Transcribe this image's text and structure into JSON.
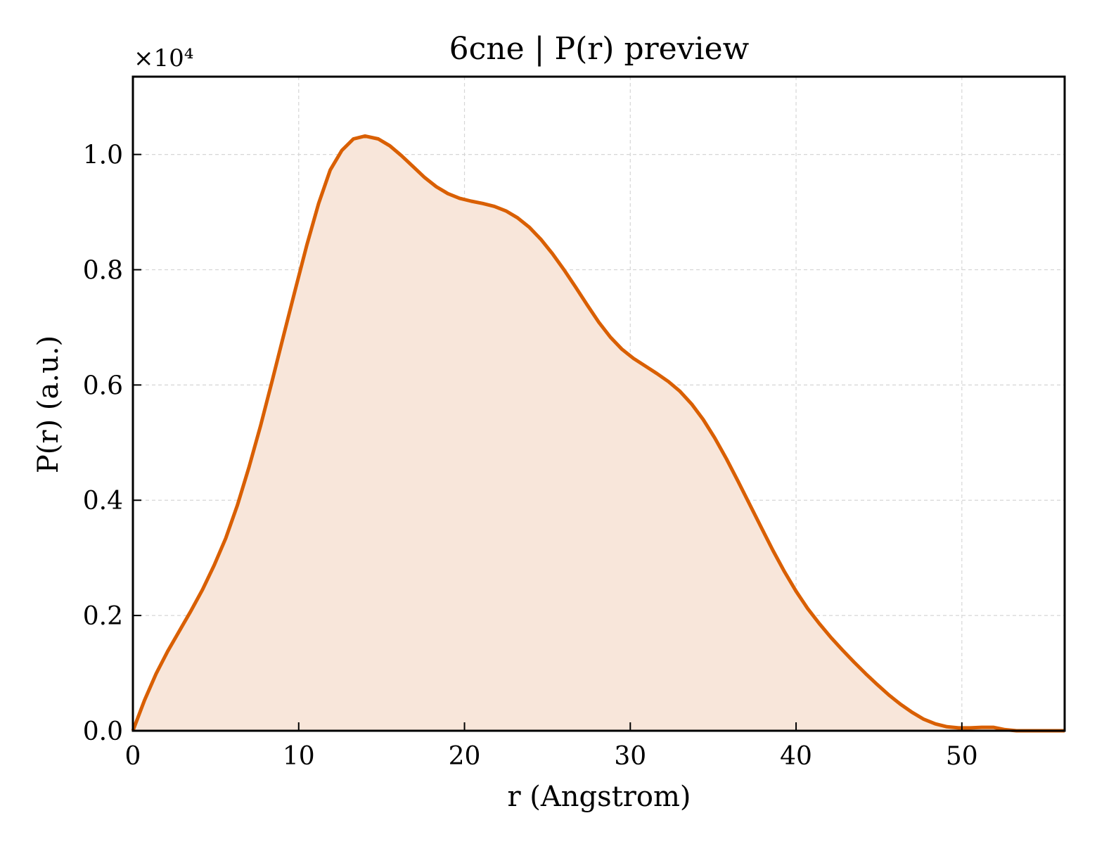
{
  "chart_data": {
    "type": "area",
    "title": "6cne | P(r) preview",
    "xlabel": "r (Angstrom)",
    "ylabel": "P(r) (a.u.)",
    "y_scale_factor_label": "×10⁴",
    "xlim": [
      0,
      56.2
    ],
    "ylim": [
      0,
      11350
    ],
    "xticks": [
      0,
      10,
      20,
      30,
      40,
      50
    ],
    "xtick_labels": [
      "0",
      "10",
      "20",
      "30",
      "40",
      "50"
    ],
    "yticks": [
      0,
      2000,
      4000,
      6000,
      8000,
      10000
    ],
    "ytick_labels": [
      "0.0",
      "0.2",
      "0.4",
      "0.6",
      "0.8",
      "1.0"
    ],
    "grid": true,
    "line_color": "#d95f02",
    "fill_color": "#f8e6da",
    "series": [
      {
        "x": [
          0,
          0.7,
          1.4,
          2.1,
          2.8,
          3.5,
          4.2,
          4.9,
          5.6,
          6.3,
          7.0,
          7.7,
          8.4,
          9.1,
          9.8,
          10.5,
          11.2,
          11.9,
          12.6,
          13.3,
          14.0,
          14.8,
          15.5,
          16.2,
          16.9,
          17.6,
          18.3,
          19.0,
          19.7,
          20.4,
          21.1,
          21.8,
          22.5,
          23.2,
          23.9,
          24.6,
          25.3,
          26.0,
          26.7,
          27.4,
          28.1,
          28.8,
          29.5,
          30.2,
          30.9,
          31.6,
          32.3,
          33.0,
          33.7,
          34.4,
          35.1,
          35.8,
          36.5,
          37.2,
          37.9,
          38.6,
          39.3,
          40.0,
          40.7,
          41.4,
          42.1,
          42.8,
          43.5,
          44.2,
          44.9,
          45.6,
          46.3,
          47.0,
          47.7,
          48.4,
          49.1,
          49.8,
          50.5,
          51.2,
          51.9,
          52.6,
          53.3,
          54.0,
          54.7,
          55.4,
          56.2
        ],
        "values": [
          0,
          530,
          990,
          1380,
          1730,
          2080,
          2450,
          2870,
          3340,
          3910,
          4570,
          5290,
          6070,
          6870,
          7660,
          8440,
          9150,
          9730,
          10070,
          10270,
          10320,
          10270,
          10150,
          9980,
          9790,
          9600,
          9440,
          9320,
          9240,
          9190,
          9150,
          9100,
          9020,
          8900,
          8740,
          8530,
          8280,
          8000,
          7700,
          7390,
          7090,
          6830,
          6620,
          6460,
          6330,
          6200,
          6060,
          5890,
          5670,
          5400,
          5080,
          4720,
          4330,
          3930,
          3530,
          3130,
          2760,
          2420,
          2120,
          1860,
          1620,
          1400,
          1190,
          990,
          800,
          620,
          460,
          320,
          200,
          120,
          70,
          50,
          50,
          60,
          60,
          20,
          0,
          0,
          0,
          0,
          0
        ]
      }
    ]
  }
}
